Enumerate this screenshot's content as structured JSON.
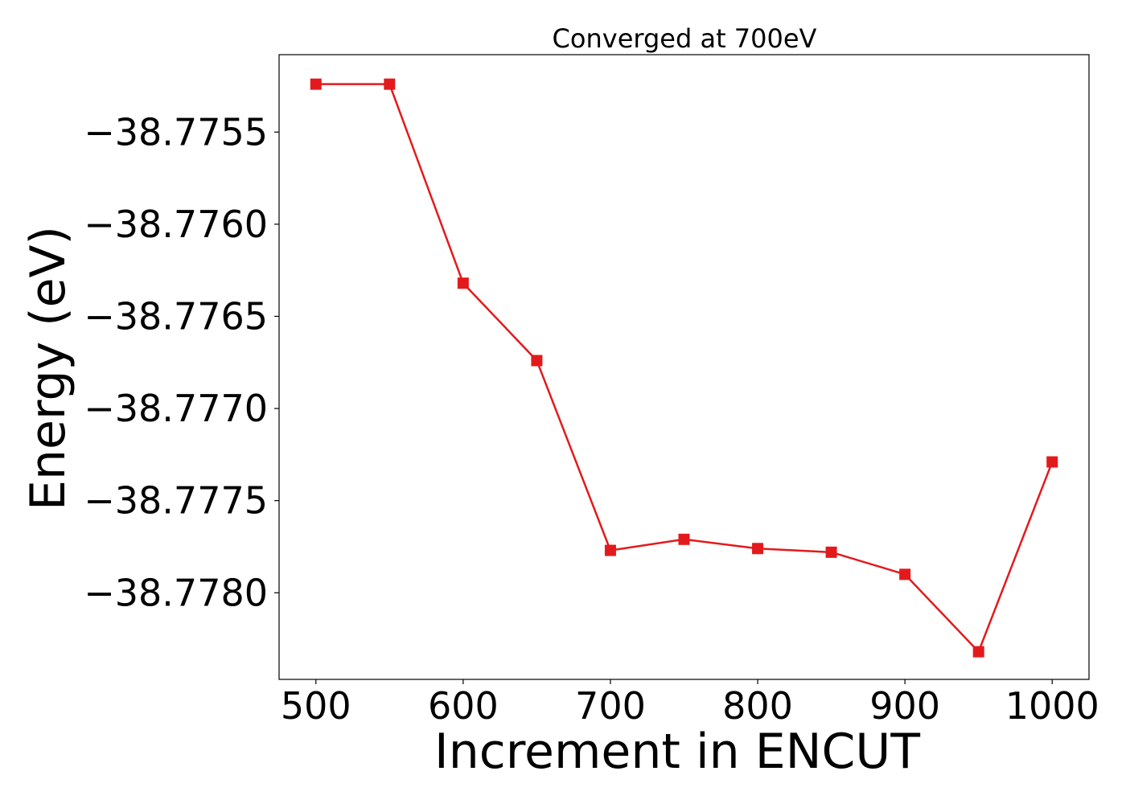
{
  "chart_data": {
    "type": "line",
    "title": "Converged at 700eV",
    "xlabel": "Increment in ENCUT",
    "ylabel": "Energy (eV)",
    "xlim": [
      475,
      1025
    ],
    "ylim": [
      -38.77847,
      -38.77508
    ],
    "xticks": [
      500,
      600,
      700,
      800,
      900,
      1000
    ],
    "xtick_labels": [
      "500",
      "600",
      "700",
      "800",
      "900",
      "1000"
    ],
    "yticks": [
      -38.7755,
      -38.776,
      -38.7765,
      -38.777,
      -38.7775,
      -38.778
    ],
    "ytick_labels": [
      "−38.7755",
      "−38.7760",
      "−38.7765",
      "−38.7770",
      "−38.7775",
      "−38.7780"
    ],
    "grid": false,
    "series": [
      {
        "color": "#e31a1c",
        "marker": "square",
        "x": [
          500,
          550,
          600,
          650,
          700,
          750,
          800,
          850,
          900,
          950,
          1000
        ],
        "y": [
          -38.77524,
          -38.77524,
          -38.77632,
          -38.77674,
          -38.77777,
          -38.77771,
          -38.77776,
          -38.77778,
          -38.7779,
          -38.77832,
          -38.77729
        ]
      }
    ]
  }
}
